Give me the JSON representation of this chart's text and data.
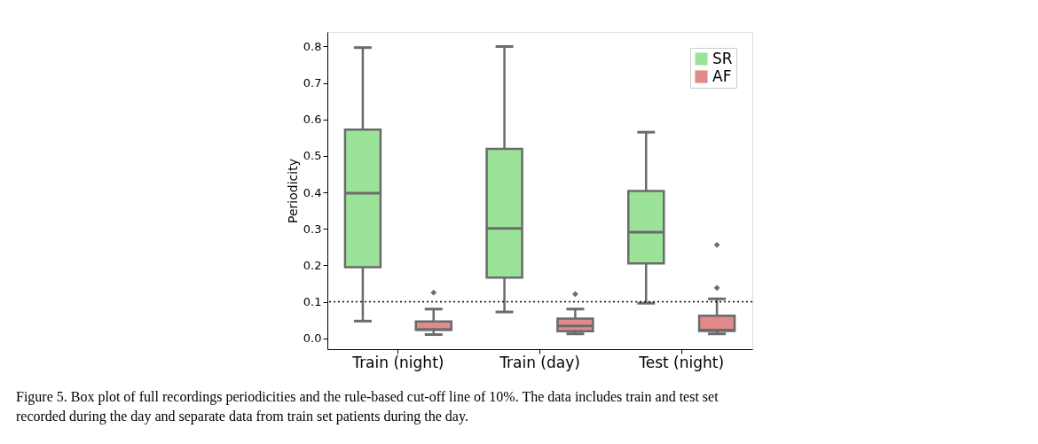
{
  "chart_data": {
    "type": "box",
    "ylabel": "Periodicity",
    "categories": [
      "Train (night)",
      "Train (day)",
      "Test (night)"
    ],
    "series": [
      {
        "name": "SR",
        "color": "#9ce39a",
        "boxes": [
          {
            "low": 0.047,
            "q1": 0.195,
            "median": 0.398,
            "q3": 0.572,
            "high": 0.797
          },
          {
            "low": 0.072,
            "q1": 0.166,
            "median": 0.301,
            "q3": 0.519,
            "high": 0.8
          },
          {
            "low": 0.096,
            "q1": 0.205,
            "median": 0.291,
            "q3": 0.404,
            "high": 0.565
          }
        ]
      },
      {
        "name": "AF",
        "color": "#e08a8a",
        "boxes": [
          {
            "low": 0.01,
            "q1": 0.023,
            "median": 0.024,
            "q3": 0.046,
            "high": 0.08,
            "outliers": [
              0.125
            ]
          },
          {
            "low": 0.012,
            "q1": 0.019,
            "median": 0.034,
            "q3": 0.054,
            "high": 0.08,
            "outliers": [
              0.121
            ]
          },
          {
            "low": 0.012,
            "q1": 0.02,
            "median": 0.022,
            "q3": 0.062,
            "high": 0.108,
            "outliers": [
              0.138,
              0.256
            ]
          }
        ]
      }
    ],
    "ylim": [
      -0.03,
      0.84
    ],
    "yticks": [
      {
        "value": 0,
        "label": "0.0"
      },
      0.1,
      0.2,
      0.3,
      0.4,
      0.5,
      0.6,
      0.7,
      0.8
    ],
    "ref_lines": [
      {
        "axis": "y",
        "value": 0.1,
        "line_style": "dotted",
        "color": "#000000"
      }
    ],
    "legend": "top right",
    "grid": false,
    "annotations": [
      "Figure 5. Box plot of full recordings periodicities and the rule-based cut-off line of 10%. The data includes train and test set recorded during the day and separate data from train set patients during the day."
    ]
  }
}
